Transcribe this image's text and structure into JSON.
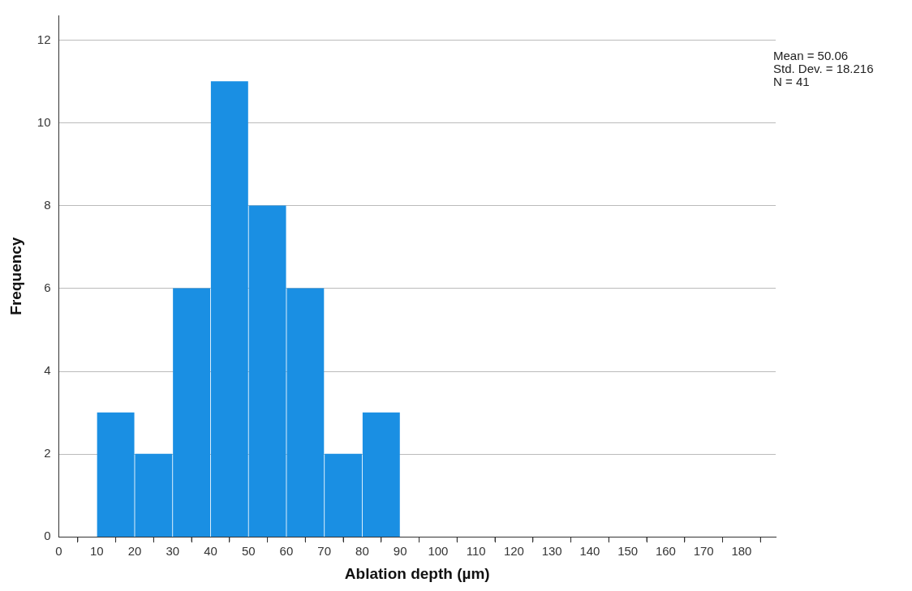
{
  "chart_data": {
    "type": "histogram",
    "xlabel": "Ablation depth (µm)",
    "ylabel": "Frequency",
    "bins": [
      10,
      20,
      30,
      40,
      50,
      60,
      70,
      80,
      90
    ],
    "values": [
      3,
      2,
      6,
      11,
      8,
      6,
      2,
      3
    ],
    "color": "#1a8fe3",
    "xlim": [
      0,
      189
    ],
    "xticks": [
      0,
      {
        "value": 5,
        "label": null
      },
      10,
      {
        "value": 15,
        "label": null
      },
      20,
      {
        "value": 25,
        "label": null
      },
      30,
      {
        "value": 35,
        "label": null
      },
      40,
      {
        "value": 45,
        "label": null
      },
      50,
      {
        "value": 55,
        "label": null
      },
      60,
      {
        "value": 65,
        "label": null
      },
      70,
      {
        "value": 75,
        "label": null
      },
      80,
      {
        "value": 85,
        "label": null
      },
      90,
      {
        "value": 95,
        "label": null
      },
      100,
      {
        "value": 105,
        "label": null
      },
      110,
      {
        "value": 115,
        "label": null
      },
      120,
      {
        "value": 125,
        "label": null
      },
      130,
      {
        "value": 135,
        "label": null
      },
      140,
      {
        "value": 145,
        "label": null
      },
      150,
      {
        "value": 155,
        "label": null
      },
      160,
      {
        "value": 165,
        "label": null
      },
      170,
      {
        "value": 175,
        "label": null
      },
      180,
      {
        "value": 185,
        "label": null
      }
    ],
    "ylim": [
      0,
      12.6
    ],
    "yticks": [
      0,
      2,
      4,
      6,
      8,
      10,
      12
    ],
    "grid": "y",
    "legend": false,
    "annotations": [
      "Mean = 50.06",
      "Std. Dev. = 18.216",
      "N = 41"
    ]
  }
}
